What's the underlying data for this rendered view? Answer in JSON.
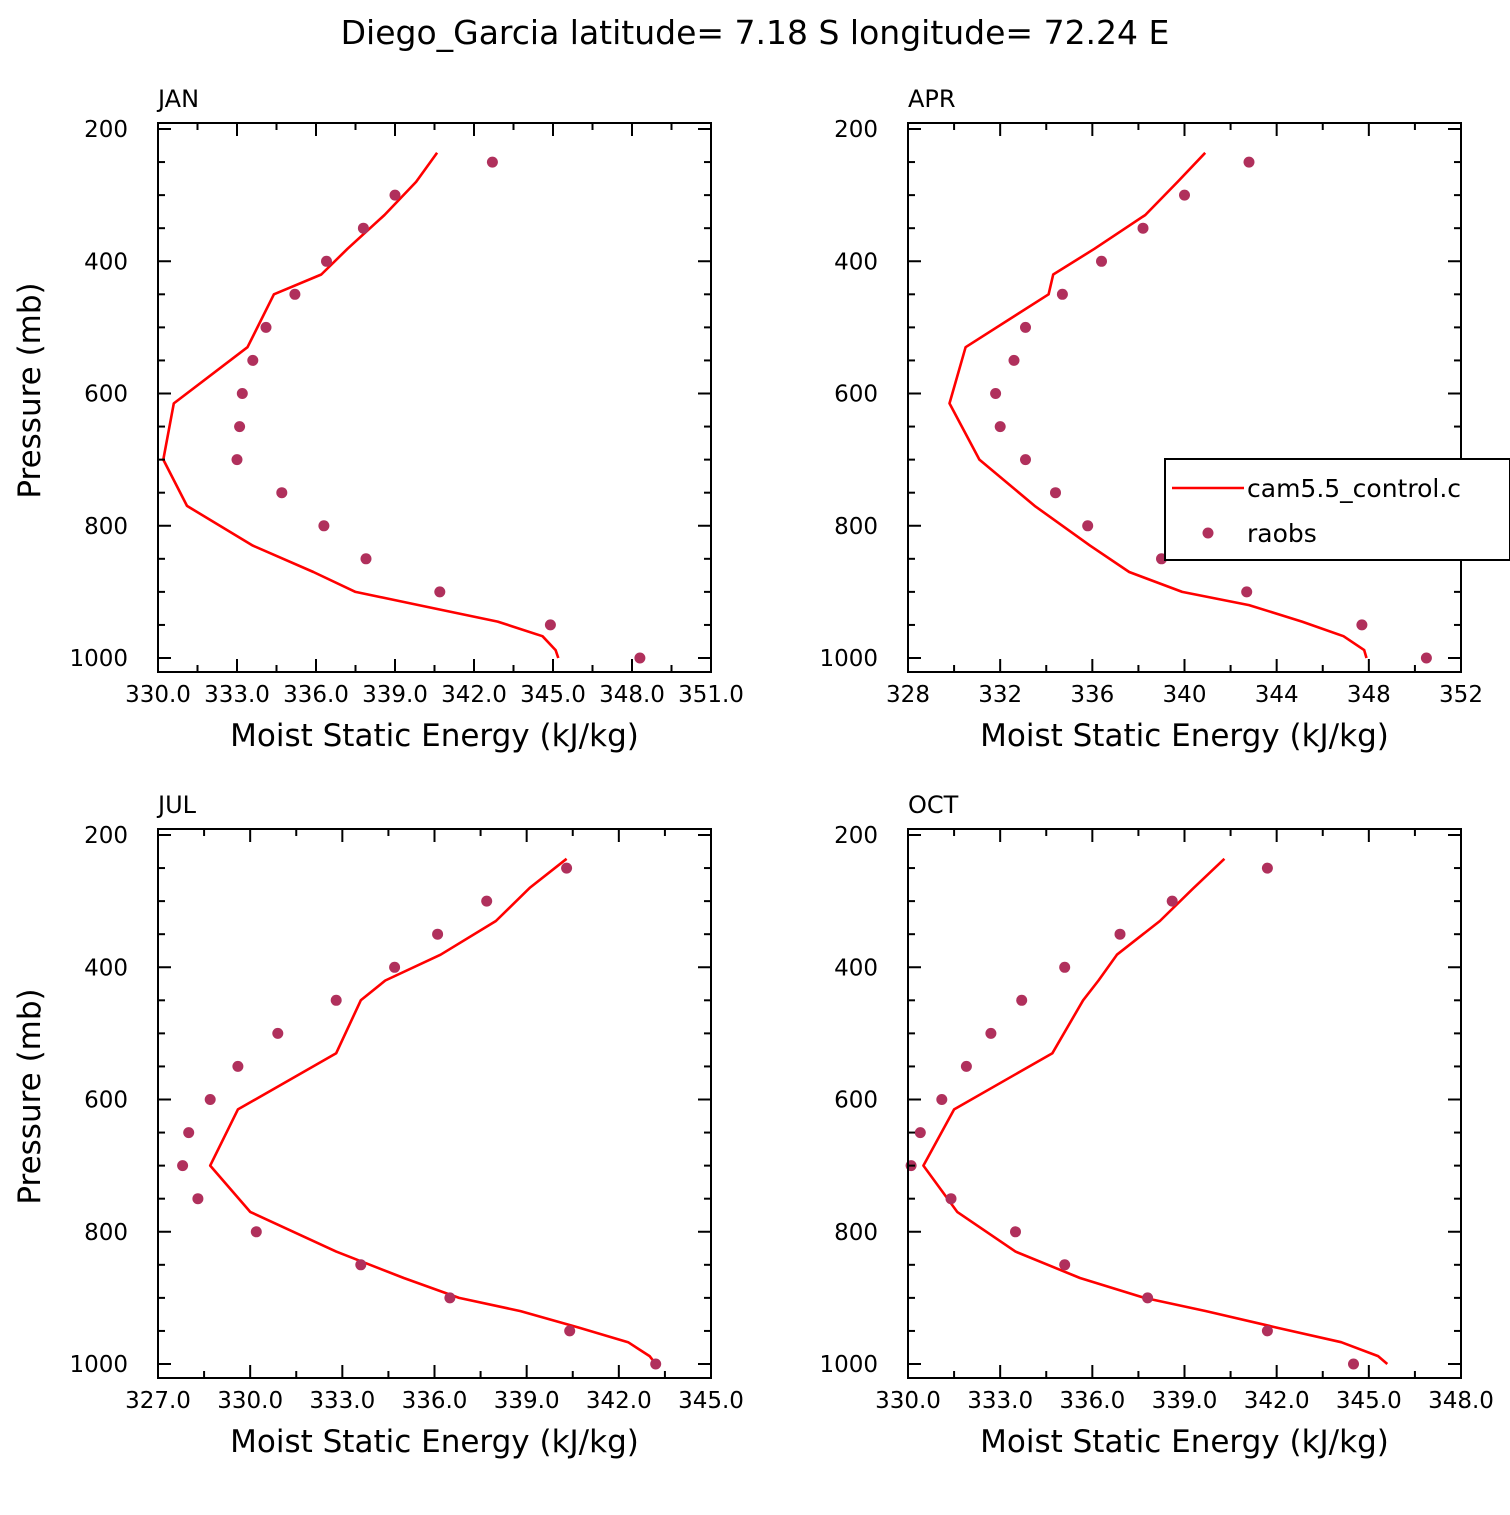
{
  "title": "Diego_Garcia  latitude= 7.18 S longitude= 72.24 E",
  "colors": {
    "model": "#ff0000",
    "obs": "#b0305c",
    "axis": "#000000"
  },
  "legend": {
    "placement": "right side of APR panel",
    "entries": [
      {
        "label": "cam5.5_control.c",
        "marker": "line"
      },
      {
        "label": "raobs",
        "marker": "dot"
      }
    ]
  },
  "chart_data": [
    {
      "type": "line",
      "panel": "JAN",
      "title": "JAN",
      "xlabel": "Moist Static Energy (kJ/kg)",
      "ylabel": "Pressure (mb)",
      "xlim": [
        330.0,
        351.0
      ],
      "ylim": [
        1000,
        200
      ],
      "y_inverted": true,
      "xticks": [
        330,
        333,
        336,
        339,
        342,
        345,
        348,
        351
      ],
      "xtick_labels": [
        "330.0",
        "333.0",
        "336.0",
        "339.0",
        "342.0",
        "345.0",
        "348.0",
        "351.0"
      ],
      "yticks": [
        200,
        400,
        600,
        800,
        1000
      ],
      "ytick_labels": [
        "200",
        "400",
        "600",
        "800",
        "1000"
      ],
      "series": [
        {
          "name": "cam5.5_control.c",
          "style": "line",
          "x": [
            340.6,
            339.8,
            338.6,
            337.2,
            336.2,
            334.4,
            333.4,
            330.6,
            330.2,
            331.1,
            333.6,
            335.9,
            337.5,
            339.9,
            342.9,
            344.6,
            345.1,
            345.2
          ],
          "y": [
            236,
            280,
            330,
            381,
            420,
            450,
            530,
            615,
            700,
            770,
            830,
            870,
            900,
            920,
            945,
            967,
            988,
            1000
          ]
        },
        {
          "name": "raobs",
          "style": "points",
          "x": [
            342.7,
            339.0,
            337.8,
            336.4,
            335.2,
            334.1,
            333.6,
            333.2,
            333.1,
            333.0,
            334.7,
            336.3,
            337.9,
            340.7,
            344.9,
            348.3
          ],
          "y": [
            250,
            300,
            350,
            400,
            450,
            500,
            550,
            600,
            650,
            700,
            750,
            800,
            850,
            900,
            950,
            1000
          ]
        }
      ]
    },
    {
      "type": "line",
      "panel": "APR",
      "title": "APR",
      "xlabel": "Moist Static Energy (kJ/kg)",
      "ylabel": "",
      "xlim": [
        328,
        352
      ],
      "ylim": [
        1000,
        200
      ],
      "y_inverted": true,
      "xticks": [
        328,
        332,
        336,
        340,
        344,
        348,
        352
      ],
      "xtick_labels": [
        "328",
        "332",
        "336",
        "340",
        "344",
        "348",
        "352"
      ],
      "yticks": [
        200,
        400,
        600,
        800,
        1000
      ],
      "ytick_labels": [
        "200",
        "400",
        "600",
        "800",
        "1000"
      ],
      "series": [
        {
          "name": "cam5.5_control.c",
          "style": "line",
          "x": [
            340.9,
            339.7,
            338.3,
            336.1,
            334.3,
            334.1,
            330.5,
            329.8,
            331.1,
            333.5,
            335.9,
            337.6,
            339.9,
            342.8,
            345.1,
            346.9,
            347.8,
            347.9
          ],
          "y": [
            236,
            280,
            330,
            381,
            420,
            450,
            530,
            615,
            700,
            770,
            830,
            870,
            900,
            920,
            945,
            967,
            988,
            1000
          ]
        },
        {
          "name": "raobs",
          "style": "points",
          "x": [
            342.8,
            340.0,
            338.2,
            336.4,
            334.7,
            333.1,
            332.6,
            331.8,
            332.0,
            333.1,
            334.4,
            335.8,
            339.0,
            342.7,
            347.7,
            350.5
          ],
          "y": [
            250,
            300,
            350,
            400,
            450,
            500,
            550,
            600,
            650,
            700,
            750,
            800,
            850,
            900,
            950,
            1000
          ]
        }
      ]
    },
    {
      "type": "line",
      "panel": "JUL",
      "title": "JUL",
      "xlabel": "Moist Static Energy (kJ/kg)",
      "ylabel": "Pressure (mb)",
      "xlim": [
        327.0,
        345.0
      ],
      "ylim": [
        1000,
        200
      ],
      "y_inverted": true,
      "xticks": [
        327,
        330,
        333,
        336,
        339,
        342,
        345
      ],
      "xtick_labels": [
        "327.0",
        "330.0",
        "333.0",
        "336.0",
        "339.0",
        "342.0",
        "345.0"
      ],
      "yticks": [
        200,
        400,
        600,
        800,
        1000
      ],
      "ytick_labels": [
        "200",
        "400",
        "600",
        "800",
        "1000"
      ],
      "series": [
        {
          "name": "cam5.5_control.c",
          "style": "line",
          "x": [
            340.3,
            339.1,
            338.0,
            336.2,
            334.4,
            333.6,
            332.8,
            329.6,
            328.7,
            330.0,
            332.8,
            335.0,
            336.8,
            338.8,
            340.7,
            342.3,
            343.0,
            343.2
          ],
          "y": [
            236,
            280,
            330,
            381,
            420,
            450,
            530,
            615,
            700,
            770,
            830,
            870,
            900,
            920,
            945,
            967,
            988,
            1000
          ]
        },
        {
          "name": "raobs",
          "style": "points",
          "x": [
            340.3,
            337.7,
            336.1,
            334.7,
            332.8,
            330.9,
            329.6,
            328.7,
            328.0,
            327.8,
            328.3,
            330.2,
            333.6,
            336.5,
            340.4,
            343.2
          ],
          "y": [
            250,
            300,
            350,
            400,
            450,
            500,
            550,
            600,
            650,
            700,
            750,
            800,
            850,
            900,
            950,
            1000
          ]
        }
      ]
    },
    {
      "type": "line",
      "panel": "OCT",
      "title": "OCT",
      "xlabel": "Moist Static Energy (kJ/kg)",
      "ylabel": "",
      "xlim": [
        330.0,
        348.0
      ],
      "ylim": [
        1000,
        200
      ],
      "y_inverted": true,
      "xticks": [
        330,
        333,
        336,
        339,
        342,
        345,
        348
      ],
      "xtick_labels": [
        "330.0",
        "333.0",
        "336.0",
        "339.0",
        "342.0",
        "345.0",
        "348.0"
      ],
      "yticks": [
        200,
        400,
        600,
        800,
        1000
      ],
      "ytick_labels": [
        "200",
        "400",
        "600",
        "800",
        "1000"
      ],
      "series": [
        {
          "name": "cam5.5_control.c",
          "style": "line",
          "x": [
            340.3,
            339.3,
            338.2,
            336.8,
            336.2,
            335.7,
            334.7,
            331.5,
            330.5,
            331.6,
            333.5,
            335.6,
            337.7,
            339.7,
            342.0,
            344.1,
            345.3,
            345.6
          ],
          "y": [
            236,
            280,
            330,
            381,
            420,
            450,
            530,
            615,
            700,
            770,
            830,
            870,
            900,
            920,
            945,
            967,
            988,
            1000
          ]
        },
        {
          "name": "raobs",
          "style": "points",
          "x": [
            341.7,
            338.6,
            336.9,
            335.1,
            333.7,
            332.7,
            331.9,
            331.1,
            330.4,
            330.1,
            331.4,
            333.5,
            335.1,
            337.8,
            341.7,
            344.5
          ],
          "y": [
            250,
            300,
            350,
            400,
            450,
            500,
            550,
            600,
            650,
            700,
            750,
            800,
            850,
            900,
            950,
            1000
          ]
        }
      ]
    }
  ]
}
